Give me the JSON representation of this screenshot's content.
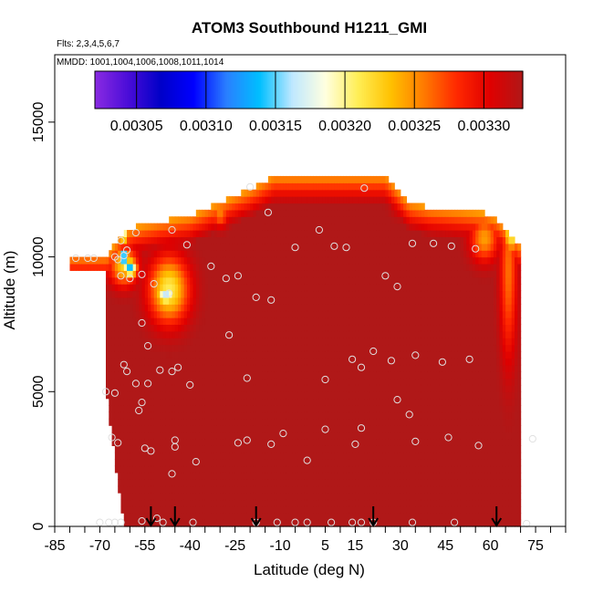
{
  "chart_data": {
    "type": "heatmap",
    "title": "ATOM3 Southbound H1211_GMI",
    "notes": [
      "Flts: 2,3,4,5,6,7",
      "MMDD: 1001,1004,1006,1008,1011,1014"
    ],
    "xlabel": "Latitude (deg N)",
    "ylabel": "Altitude (m)",
    "xlim": [
      -85,
      85
    ],
    "ylim": [
      0,
      17500
    ],
    "x_ticks": [
      -85,
      -70,
      -55,
      -40,
      -25,
      -10,
      5,
      15,
      30,
      45,
      60,
      75
    ],
    "y_ticks": [
      0,
      5000,
      10000,
      15000
    ],
    "colorbar": {
      "min": 0.00302,
      "max": 0.003328,
      "tick_values": [
        0.00305,
        0.0031,
        0.00315,
        0.0032,
        0.00325,
        0.0033
      ],
      "tick_labels": [
        "0.00305",
        "0.00310",
        "0.00315",
        "0.00320",
        "0.00325",
        "0.00330"
      ],
      "colors": [
        "#8a2be2",
        "#4b0dd8",
        "#0000c8",
        "#0000ff",
        "#2a7fff",
        "#00bfff",
        "#bfe8ff",
        "#ffffe0",
        "#ffee55",
        "#ffc000",
        "#ff7a00",
        "#ff2800",
        "#e00000",
        "#b01818"
      ]
    },
    "field_background_value": 0.00333,
    "envelope": {
      "lat": [
        -68,
        -62,
        -58,
        -50,
        -40,
        -30,
        -20,
        -12,
        -5,
        5,
        15,
        25,
        33,
        40,
        50,
        58,
        62,
        70
      ],
      "top_alt": [
        9900,
        10800,
        11000,
        11200,
        11400,
        11900,
        12400,
        12900,
        12900,
        12900,
        12900,
        12900,
        11900,
        11700,
        11600,
        11500,
        11300,
        10300
      ],
      "bottom_lat_start": -68,
      "bottom_lat_end": 72
    },
    "features": [
      {
        "lat": -62,
        "alt": 9700,
        "value": 0.003225,
        "rx": 5,
        "ry": 800
      },
      {
        "lat": -47,
        "alt": 8800,
        "value": 0.00321,
        "rx": 7,
        "ry": 1300
      },
      {
        "lat": -62,
        "alt": 10000,
        "value": 0.00306,
        "rx": 1.6,
        "ry": 250
      },
      {
        "lat": -60,
        "alt": 9600,
        "value": 0.00313,
        "rx": 2.5,
        "ry": 350
      },
      {
        "lat": -48,
        "alt": 8600,
        "value": 0.00316,
        "rx": 3.5,
        "ry": 400
      },
      {
        "lat": -62,
        "alt": 10800,
        "value": 0.00318,
        "rx": 2,
        "ry": 300
      },
      {
        "lat": 66,
        "alt": 9500,
        "value": 0.00326,
        "rx": 3,
        "ry": 3500
      },
      {
        "lat": 67,
        "alt": 11000,
        "value": 0.003195,
        "rx": 3,
        "ry": 900
      },
      {
        "lat": 58,
        "alt": 10700,
        "value": 0.003245,
        "rx": 5,
        "ry": 900
      },
      {
        "lat": -30,
        "alt": 11600,
        "value": 0.003255,
        "rx": 3,
        "ry": 500
      },
      {
        "lat": 33,
        "alt": 12000,
        "value": 0.00326,
        "rx": 5,
        "ry": 500
      },
      {
        "lat": -73,
        "alt": 9700,
        "value": 0.00328,
        "rx": 3,
        "ry": 500
      }
    ],
    "sample_points": [
      [
        -78,
        9950
      ],
      [
        -74,
        9950
      ],
      [
        -72,
        9950
      ],
      [
        -65,
        10000
      ],
      [
        -64,
        9900
      ],
      [
        -62,
        10050
      ],
      [
        -61,
        10250
      ],
      [
        -63,
        10600
      ],
      [
        -58,
        10900
      ],
      [
        -63,
        9300
      ],
      [
        -60,
        9200
      ],
      [
        -56,
        9350
      ],
      [
        -52,
        9000
      ],
      [
        -47,
        8650
      ],
      [
        -46,
        11000
      ],
      [
        -41,
        10450
      ],
      [
        -33,
        9650
      ],
      [
        -28,
        9200
      ],
      [
        -24,
        9300
      ],
      [
        -20,
        12600
      ],
      [
        -14,
        11650
      ],
      [
        -18,
        8500
      ],
      [
        -13,
        8400
      ],
      [
        -5,
        10350
      ],
      [
        3,
        11000
      ],
      [
        8,
        10400
      ],
      [
        12,
        10350
      ],
      [
        18,
        12550
      ],
      [
        25,
        9300
      ],
      [
        29,
        8900
      ],
      [
        34,
        10500
      ],
      [
        41,
        10500
      ],
      [
        47,
        10400
      ],
      [
        55,
        10300
      ],
      [
        -56,
        7550
      ],
      [
        -54,
        6700
      ],
      [
        -27,
        7100
      ],
      [
        -62,
        6000
      ],
      [
        -61,
        5750
      ],
      [
        -50,
        5800
      ],
      [
        -44,
        5900
      ],
      [
        -46,
        5750
      ],
      [
        -58,
        5300
      ],
      [
        -54,
        5300
      ],
      [
        -40,
        5250
      ],
      [
        -65,
        4950
      ],
      [
        -68,
        5000
      ],
      [
        -56,
        4600
      ],
      [
        -57,
        4300
      ],
      [
        -21,
        5500
      ],
      [
        5,
        5450
      ],
      [
        14,
        6200
      ],
      [
        17,
        5900
      ],
      [
        21,
        6500
      ],
      [
        27,
        6150
      ],
      [
        35,
        6350
      ],
      [
        44,
        6100
      ],
      [
        53,
        6200
      ],
      [
        29,
        4700
      ],
      [
        33,
        4150
      ],
      [
        -66,
        3300
      ],
      [
        -64,
        3100
      ],
      [
        -55,
        2900
      ],
      [
        -53,
        2800
      ],
      [
        -45,
        3200
      ],
      [
        -45,
        2950
      ],
      [
        -46,
        1950
      ],
      [
        -38,
        2400
      ],
      [
        -24,
        3100
      ],
      [
        -21,
        3200
      ],
      [
        -13,
        3050
      ],
      [
        -9,
        3450
      ],
      [
        -1,
        2450
      ],
      [
        5,
        3600
      ],
      [
        15,
        3050
      ],
      [
        17,
        3650
      ],
      [
        35,
        3150
      ],
      [
        46,
        3300
      ],
      [
        56,
        3000
      ],
      [
        74,
        3250
      ],
      [
        -70,
        150
      ],
      [
        -67,
        150
      ],
      [
        -65,
        150
      ],
      [
        -63,
        150
      ],
      [
        -56,
        200
      ],
      [
        -51,
        300
      ],
      [
        -49,
        150
      ],
      [
        -39,
        150
      ],
      [
        -18,
        150
      ],
      [
        -11,
        150
      ],
      [
        -5,
        150
      ],
      [
        -1,
        150
      ],
      [
        7,
        150
      ],
      [
        14,
        150
      ],
      [
        17,
        150
      ],
      [
        21,
        150
      ],
      [
        34,
        150
      ],
      [
        48,
        150
      ],
      [
        72,
        100
      ]
    ],
    "sample_point_color": "#e0e0e0",
    "arrows_lat": [
      -53,
      -45,
      -18,
      21,
      62
    ]
  }
}
